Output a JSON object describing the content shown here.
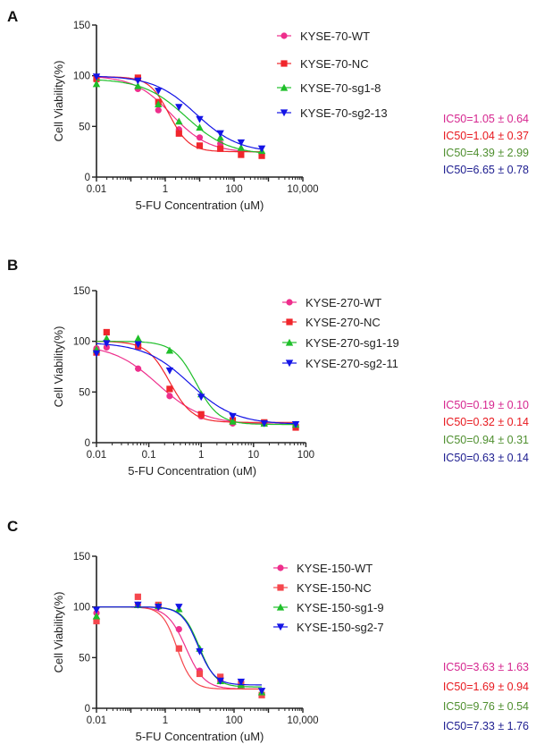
{
  "chart_data": [
    {
      "panel": "A",
      "type": "line",
      "xscale": "log",
      "xlim": [
        0.01,
        10000
      ],
      "ylim": [
        0,
        150
      ],
      "xlabel": "5-FU Concentration (uM)",
      "ylabel": "Cell Viability(%)",
      "xticks": [
        "0.01",
        "1",
        "100",
        "10,000"
      ],
      "yticks": [
        "0",
        "50",
        "100",
        "150"
      ],
      "legend": "right",
      "x": [
        0.01,
        0.16,
        0.63,
        2.5,
        10,
        40,
        160,
        640
      ],
      "series": [
        {
          "name": "KYSE-70-WT",
          "marker": "circle",
          "color": "#ee2f8c",
          "values": [
            96,
            87,
            66,
            47,
            39,
            33,
            26,
            22
          ],
          "ic50": "IC50=1.05 ± 0.64",
          "ic50_color": "#d6268f"
        },
        {
          "name": "KYSE-70-NC",
          "marker": "square",
          "color": "#f0262c",
          "values": [
            97,
            98,
            74,
            43,
            31,
            28,
            22,
            21
          ],
          "ic50": "IC50=1.04 ± 0.37",
          "ic50_color": "#e8191f"
        },
        {
          "name": "KYSE-70-sg1-8",
          "marker": "triangle-up",
          "color": "#1fbf2a",
          "values": [
            92,
            90,
            72,
            55,
            49,
            39,
            29,
            26
          ],
          "ic50": "IC50=4.39 ± 2.99",
          "ic50_color": "#4f8f2f"
        },
        {
          "name": "KYSE-70-sg2-13",
          "marker": "triangle-down",
          "color": "#1414e6",
          "values": [
            99,
            95,
            85,
            69,
            57,
            43,
            34,
            28
          ],
          "ic50": "IC50=6.65 ± 0.78",
          "ic50_color": "#1c1c8f"
        }
      ]
    },
    {
      "panel": "B",
      "type": "line",
      "xscale": "log",
      "xlim": [
        0.01,
        100
      ],
      "ylim": [
        0,
        150
      ],
      "xlabel": "5-FU Concentration (uM)",
      "ylabel": "Cell Viability(%)",
      "xticks": [
        "0.01",
        "0.1",
        "1",
        "10",
        "100"
      ],
      "yticks": [
        "0",
        "50",
        "100",
        "150"
      ],
      "legend": "right",
      "x": [
        0.01,
        0.0156,
        0.0625,
        0.25,
        1,
        4,
        16,
        64
      ],
      "series": [
        {
          "name": "KYSE-270-WT",
          "marker": "circle",
          "color": "#ee2f8c",
          "values": [
            93,
            94,
            73,
            46,
            26,
            19,
            19,
            17
          ],
          "ic50": "IC50=0.19 ± 0.10",
          "ic50_color": "#d6268f"
        },
        {
          "name": "KYSE-270-NC",
          "marker": "square",
          "color": "#f0262c",
          "values": [
            89,
            109,
            95,
            53,
            28,
            22,
            20,
            15
          ],
          "ic50": "IC50=0.32 ± 0.14",
          "ic50_color": "#e8191f"
        },
        {
          "name": "KYSE-270-sg1-19",
          "marker": "triangle-up",
          "color": "#1fbf2a",
          "values": [
            92,
            103,
            103,
            91,
            48,
            21,
            19,
            18
          ],
          "ic50": "IC50=0.94 ± 0.31",
          "ic50_color": "#4f8f2f"
        },
        {
          "name": "KYSE-270-sg2-11",
          "marker": "triangle-down",
          "color": "#1414e6",
          "values": [
            88,
            98,
            97,
            71,
            45,
            26,
            19,
            18
          ],
          "ic50": "IC50=0.63 ± 0.14",
          "ic50_color": "#1c1c8f"
        }
      ]
    },
    {
      "panel": "C",
      "type": "line",
      "xscale": "log",
      "xlim": [
        0.01,
        10000
      ],
      "ylim": [
        0,
        150
      ],
      "xlabel": "5-FU Concentration (uM)",
      "ylabel": "Cell Viability(%)",
      "xticks": [
        "0.01",
        "1",
        "100",
        "10,000"
      ],
      "yticks": [
        "0",
        "50",
        "100",
        "150"
      ],
      "legend": "right",
      "x": [
        0.01,
        0.16,
        0.63,
        2.5,
        10,
        40,
        160,
        640
      ],
      "series": [
        {
          "name": "KYSE-150-WT",
          "marker": "circle",
          "color": "#ee2f8c",
          "values": [
            94,
            102,
            100,
            78,
            37,
            27,
            22,
            14
          ],
          "ic50": "IC50=3.63 ± 1.63",
          "ic50_color": "#d6268f"
        },
        {
          "name": "KYSE-150-NC",
          "marker": "square",
          "color": "#f5474d",
          "values": [
            86,
            110,
            102,
            59,
            34,
            31,
            24,
            13
          ],
          "ic50": "IC50=1.69 ± 0.94",
          "ic50_color": "#e8191f"
        },
        {
          "name": "KYSE-150-sg1-9",
          "marker": "triangle-up",
          "color": "#1fbf2a",
          "values": [
            91,
            102,
            101,
            98,
            59,
            27,
            23,
            16
          ],
          "ic50": "IC50=9.76 ± 0.54",
          "ic50_color": "#4f8f2f"
        },
        {
          "name": "KYSE-150-sg2-7",
          "marker": "triangle-down",
          "color": "#1414e6",
          "values": [
            97,
            102,
            100,
            100,
            56,
            27,
            26,
            17
          ],
          "ic50": "IC50=7.33 ± 1.76",
          "ic50_color": "#1c1c8f"
        }
      ]
    }
  ]
}
